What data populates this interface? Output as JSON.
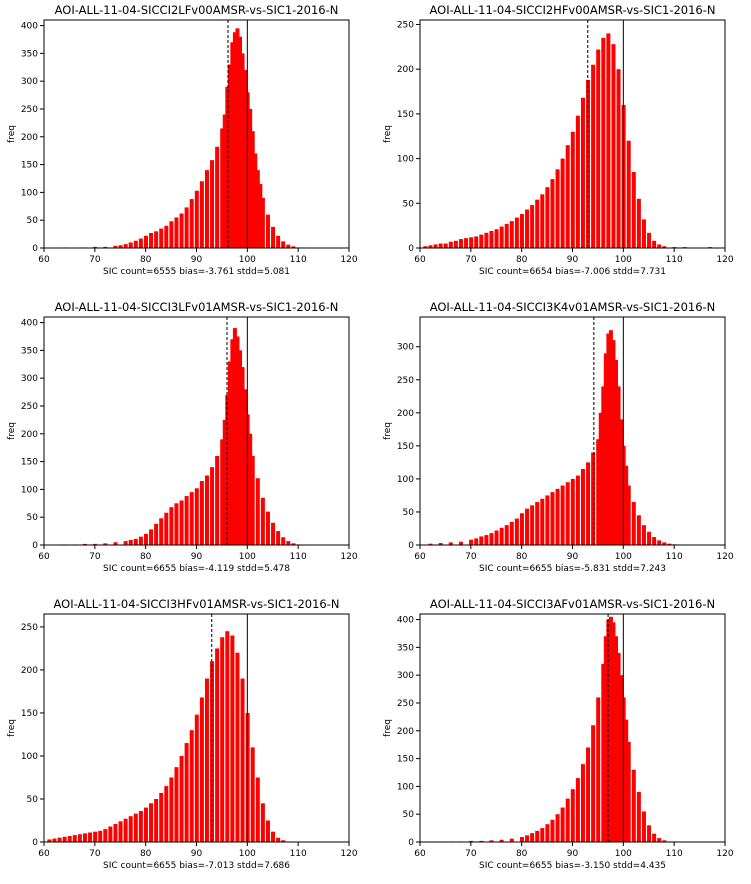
{
  "chart_data": [
    {
      "type": "bar",
      "title": "AOI-ALL-11-04-SICCI2LFv00AMSR-vs-SIC1-2016-N",
      "xlabel": "SIC  count=6555 bias=-3.761 stdd=5.081",
      "ylabel": "freq",
      "xlim": [
        60,
        120
      ],
      "ylim": [
        0,
        410
      ],
      "xticks": [
        "60",
        "70",
        "80",
        "90",
        "100",
        "110",
        "120"
      ],
      "yticks": [
        "0",
        "50",
        "100",
        "150",
        "200",
        "250",
        "300",
        "350",
        "400"
      ],
      "grid": false,
      "bin_width": 0.67,
      "bias_line_x": 96.2,
      "ref_line_x": 100,
      "bar_color": "#ff0000",
      "x": [
        62,
        64,
        66,
        68,
        70,
        72,
        74,
        75,
        76,
        77,
        78,
        79,
        80,
        81,
        82,
        83,
        84,
        85,
        86,
        87,
        88,
        89,
        90,
        91,
        92,
        93,
        94,
        95,
        95.5,
        96,
        96.5,
        97,
        97.5,
        98,
        98.5,
        99,
        99.5,
        100,
        100.5,
        101,
        101.5,
        102,
        102.5,
        103,
        104,
        105,
        106,
        107,
        108,
        109,
        110,
        111
      ],
      "values": [
        0,
        1,
        0,
        1,
        2,
        2,
        4,
        5,
        7,
        10,
        13,
        17,
        22,
        27,
        30,
        35,
        40,
        48,
        55,
        62,
        73,
        88,
        103,
        120,
        140,
        158,
        182,
        215,
        240,
        290,
        330,
        370,
        388,
        395,
        380,
        350,
        320,
        280,
        250,
        210,
        170,
        140,
        115,
        90,
        60,
        38,
        22,
        12,
        6,
        3,
        1,
        0
      ]
    },
    {
      "type": "bar",
      "title": "AOI-ALL-11-04-SICCI2HFv00AMSR-vs-SIC1-2016-N",
      "xlabel": "SIC  count=6654 bias=-7.006 stdd=7.731",
      "ylabel": "freq",
      "xlim": [
        60,
        120
      ],
      "ylim": [
        0,
        255
      ],
      "xticks": [
        "60",
        "70",
        "80",
        "90",
        "100",
        "110",
        "120"
      ],
      "yticks": [
        "0",
        "50",
        "100",
        "150",
        "200",
        "250"
      ],
      "grid": false,
      "bin_width": 0.67,
      "bias_line_x": 93,
      "ref_line_x": 100,
      "bar_color": "#ff0000",
      "x": [
        61,
        62,
        63,
        64,
        65,
        66,
        67,
        68,
        69,
        70,
        71,
        72,
        73,
        74,
        75,
        76,
        77,
        78,
        79,
        80,
        81,
        82,
        83,
        84,
        85,
        86,
        87,
        88,
        89,
        90,
        91,
        92,
        93,
        94,
        95,
        96,
        97,
        98,
        99,
        100,
        101,
        102,
        103,
        104,
        105,
        106,
        107,
        108,
        110,
        112,
        117
      ],
      "values": [
        2,
        3,
        4,
        5,
        5,
        7,
        8,
        10,
        11,
        12,
        13,
        15,
        17,
        19,
        21,
        24,
        27,
        30,
        34,
        38,
        43,
        48,
        54,
        60,
        68,
        77,
        88,
        100,
        115,
        130,
        148,
        168,
        188,
        205,
        222,
        235,
        240,
        228,
        200,
        160,
        120,
        85,
        55,
        32,
        17,
        8,
        4,
        2,
        1,
        1,
        1
      ]
    },
    {
      "type": "bar",
      "title": "AOI-ALL-11-04-SICCI3LFv01AMSR-vs-SIC1-2016-N",
      "xlabel": "SIC  count=6655 bias=-4.119 stdd=5.478",
      "ylabel": "freq",
      "xlim": [
        60,
        120
      ],
      "ylim": [
        0,
        410
      ],
      "xticks": [
        "60",
        "70",
        "80",
        "90",
        "100",
        "110",
        "120"
      ],
      "yticks": [
        "0",
        "50",
        "100",
        "150",
        "200",
        "250",
        "300",
        "350",
        "400"
      ],
      "grid": false,
      "bin_width": 0.67,
      "bias_line_x": 96,
      "ref_line_x": 100,
      "bar_color": "#ff0000",
      "x": [
        64,
        66,
        68,
        70,
        72,
        74,
        76,
        77,
        78,
        79,
        80,
        81,
        82,
        83,
        84,
        85,
        86,
        87,
        88,
        89,
        90,
        91,
        92,
        93,
        94,
        95,
        95.5,
        96,
        96.5,
        97,
        97.5,
        98,
        98.5,
        99,
        99.5,
        100,
        100.5,
        101,
        102,
        103,
        104,
        105,
        106,
        107,
        108,
        109,
        110
      ],
      "values": [
        1,
        1,
        2,
        2,
        3,
        5,
        7,
        9,
        11,
        15,
        20,
        28,
        38,
        48,
        58,
        68,
        75,
        80,
        88,
        95,
        102,
        115,
        125,
        140,
        160,
        190,
        225,
        270,
        330,
        370,
        390,
        375,
        350,
        320,
        280,
        235,
        200,
        160,
        120,
        85,
        60,
        40,
        25,
        14,
        7,
        3,
        1
      ]
    },
    {
      "type": "bar",
      "title": "AOI-ALL-11-04-SICCI3K4v01AMSR-vs-SIC1-2016-N",
      "xlabel": "SIC  count=6655 bias=-5.831 stdd=7.243",
      "ylabel": "freq",
      "xlim": [
        60,
        120
      ],
      "ylim": [
        0,
        345
      ],
      "xticks": [
        "60",
        "70",
        "80",
        "90",
        "100",
        "110",
        "120"
      ],
      "yticks": [
        "0",
        "50",
        "100",
        "150",
        "200",
        "250",
        "300"
      ],
      "grid": false,
      "bin_width": 0.67,
      "bias_line_x": 94.2,
      "ref_line_x": 100,
      "bar_color": "#ff0000",
      "x": [
        62,
        64,
        66,
        68,
        70,
        71,
        72,
        73,
        74,
        75,
        76,
        77,
        78,
        79,
        80,
        81,
        82,
        83,
        84,
        85,
        86,
        87,
        88,
        89,
        90,
        91,
        92,
        93,
        94,
        95,
        95.5,
        96,
        96.5,
        97,
        97.5,
        98,
        98.5,
        99,
        99.5,
        100,
        100.5,
        101,
        102,
        103,
        104,
        105,
        106,
        107,
        108,
        109,
        110
      ],
      "values": [
        2,
        3,
        4,
        5,
        8,
        10,
        13,
        15,
        18,
        22,
        26,
        30,
        35,
        40,
        48,
        55,
        60,
        65,
        70,
        75,
        80,
        85,
        90,
        95,
        100,
        105,
        115,
        125,
        140,
        160,
        200,
        240,
        290,
        320,
        325,
        310,
        280,
        240,
        190,
        150,
        120,
        90,
        65,
        45,
        30,
        20,
        12,
        7,
        4,
        2,
        1
      ]
    },
    {
      "type": "bar",
      "title": "AOI-ALL-11-04-SICCI3HFv01AMSR-vs-SIC1-2016-N",
      "xlabel": "SIC  count=6655 bias=-7.013 stdd=7.686",
      "ylabel": "freq",
      "xlim": [
        60,
        120
      ],
      "ylim": [
        0,
        265
      ],
      "xticks": [
        "60",
        "70",
        "80",
        "90",
        "100",
        "110",
        "120"
      ],
      "yticks": [
        "0",
        "50",
        "100",
        "150",
        "200",
        "250"
      ],
      "grid": false,
      "bin_width": 0.67,
      "bias_line_x": 93,
      "ref_line_x": 100,
      "bar_color": "#ff0000",
      "x": [
        61,
        62,
        63,
        64,
        65,
        66,
        67,
        68,
        69,
        70,
        71,
        72,
        73,
        74,
        75,
        76,
        77,
        78,
        79,
        80,
        81,
        82,
        83,
        84,
        85,
        86,
        87,
        88,
        89,
        90,
        91,
        92,
        93,
        94,
        95,
        96,
        97,
        98,
        99,
        100,
        101,
        102,
        103,
        104,
        105,
        106,
        107
      ],
      "values": [
        3,
        4,
        5,
        6,
        7,
        8,
        9,
        10,
        11,
        12,
        13,
        15,
        18,
        21,
        24,
        27,
        30,
        33,
        36,
        40,
        45,
        50,
        57,
        65,
        75,
        87,
        100,
        115,
        130,
        148,
        168,
        190,
        210,
        225,
        238,
        245,
        240,
        220,
        190,
        150,
        110,
        75,
        45,
        25,
        12,
        5,
        2
      ]
    },
    {
      "type": "bar",
      "title": "AOI-ALL-11-04-SICCI3AFv01AMSR-vs-SIC1-2016-N",
      "xlabel": "SIC  count=6655 bias=-3.150 stdd=4.435",
      "ylabel": "freq",
      "xlim": [
        60,
        120
      ],
      "ylim": [
        0,
        410
      ],
      "xticks": [
        "60",
        "70",
        "80",
        "90",
        "100",
        "110",
        "120"
      ],
      "yticks": [
        "0",
        "50",
        "100",
        "150",
        "200",
        "250",
        "300",
        "350",
        "400"
      ],
      "grid": false,
      "bin_width": 0.67,
      "bias_line_x": 97,
      "ref_line_x": 100,
      "bar_color": "#ff0000",
      "x": [
        66,
        68,
        70,
        72,
        74,
        76,
        78,
        80,
        81,
        82,
        83,
        84,
        85,
        86,
        87,
        88,
        89,
        90,
        91,
        92,
        93,
        94,
        95,
        96,
        96.5,
        97,
        97.5,
        98,
        98.5,
        99,
        99.5,
        100,
        100.5,
        101,
        102,
        103,
        104,
        105,
        106,
        107,
        108,
        109,
        110
      ],
      "values": [
        1,
        1,
        2,
        2,
        3,
        4,
        6,
        9,
        12,
        16,
        20,
        25,
        32,
        40,
        50,
        62,
        78,
        95,
        115,
        140,
        170,
        210,
        260,
        320,
        370,
        400,
        405,
        395,
        370,
        340,
        300,
        260,
        220,
        180,
        130,
        90,
        55,
        30,
        15,
        7,
        3,
        1,
        1
      ]
    }
  ]
}
